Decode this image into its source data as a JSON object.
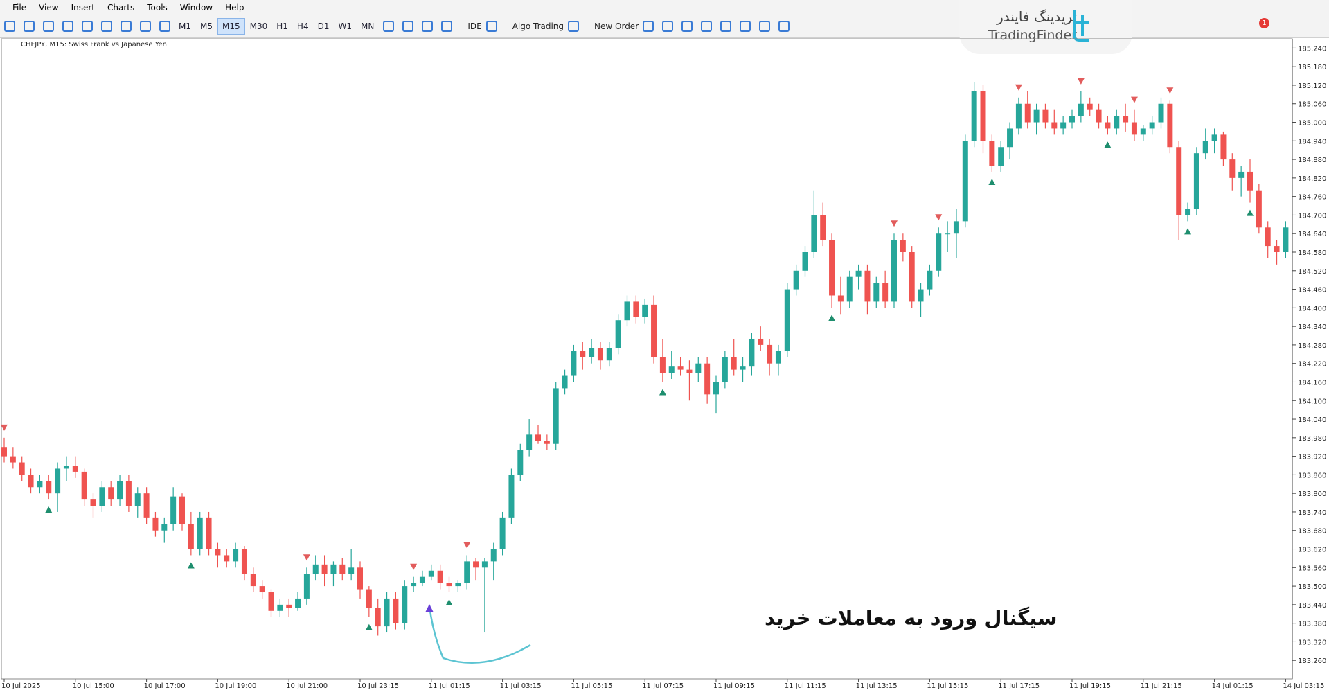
{
  "menu": [
    "File",
    "View",
    "Insert",
    "Charts",
    "Tools",
    "Window",
    "Help"
  ],
  "toolbar": {
    "timeframes": [
      "M1",
      "M5",
      "M15",
      "M30",
      "H1",
      "H4",
      "D1",
      "W1",
      "MN"
    ],
    "buttons": [
      "IDE",
      "Algo Trading",
      "New Order"
    ],
    "notification_count": 1
  },
  "logo": {
    "persian": "تریدینگ فایندر",
    "latin": "TradingFinder"
  },
  "chart_data": {
    "type": "candlestick",
    "title": "CHFJPY, M15:  Swiss Frank vs Japanese Yen",
    "annotation": "سیگنال ورود به معاملات خرید",
    "up_color": "#26a69a",
    "down_color": "#ef5350",
    "ylim": [
      183.2,
      185.27
    ],
    "yticks": [
      {
        "value": 185.24,
        "label": "185.240"
      },
      {
        "value": 185.18,
        "label": "185.180"
      },
      {
        "value": 185.12,
        "label": "185.120"
      },
      {
        "value": 185.06,
        "label": "185.060"
      },
      {
        "value": 185,
        "label": "185.000"
      },
      {
        "value": 184.94,
        "label": "184.940"
      },
      {
        "value": 184.88,
        "label": "184.880"
      },
      {
        "value": 184.82,
        "label": "184.820"
      },
      {
        "value": 184.76,
        "label": "184.760"
      },
      {
        "value": 184.7,
        "label": "184.700"
      },
      {
        "value": 184.64,
        "label": "184.640"
      },
      {
        "value": 184.58,
        "label": "184.580"
      },
      {
        "value": 184.52,
        "label": "184.520"
      },
      {
        "value": 184.46,
        "label": "184.460"
      },
      {
        "value": 184.4,
        "label": "184.400"
      },
      {
        "value": 184.34,
        "label": "184.340"
      },
      {
        "value": 184.28,
        "label": "184.280"
      },
      {
        "value": 184.22,
        "label": "184.220"
      },
      {
        "value": 184.16,
        "label": "184.160"
      },
      {
        "value": 184.1,
        "label": "184.100"
      },
      {
        "value": 184.04,
        "label": "184.040"
      },
      {
        "value": 183.98,
        "label": "183.980"
      },
      {
        "value": 183.92,
        "label": "183.920"
      },
      {
        "value": 183.86,
        "label": "183.860"
      },
      {
        "value": 183.8,
        "label": "183.800"
      },
      {
        "value": 183.74,
        "label": "183.740"
      },
      {
        "value": 183.68,
        "label": "183.680"
      },
      {
        "value": 183.62,
        "label": "183.620"
      },
      {
        "value": 183.56,
        "label": "183.560"
      },
      {
        "value": 183.5,
        "label": "183.500"
      },
      {
        "value": 183.44,
        "label": "183.440"
      },
      {
        "value": 183.38,
        "label": "183.380"
      },
      {
        "value": 183.32,
        "label": "183.320"
      },
      {
        "value": 183.26,
        "label": "183.260"
      }
    ],
    "xticks": [
      {
        "value": 0,
        "label": "10 Jul 2025"
      },
      {
        "value": 8,
        "label": "10 Jul 15:00"
      },
      {
        "value": 16,
        "label": "10 Jul 17:00"
      },
      {
        "value": 24,
        "label": "10 Jul 19:00"
      },
      {
        "value": 32,
        "label": "10 Jul 21:00"
      },
      {
        "value": 40,
        "label": "10 Jul 23:15"
      },
      {
        "value": 48,
        "label": "11 Jul 01:15"
      },
      {
        "value": 56,
        "label": "11 Jul 03:15"
      },
      {
        "value": 64,
        "label": "11 Jul 05:15"
      },
      {
        "value": 72,
        "label": "11 Jul 07:15"
      },
      {
        "value": 80,
        "label": "11 Jul 09:15"
      },
      {
        "value": 88,
        "label": "11 Jul 11:15"
      },
      {
        "value": 96,
        "label": "11 Jul 13:15"
      },
      {
        "value": 104,
        "label": "11 Jul 15:15"
      },
      {
        "value": 112,
        "label": "11 Jul 17:15"
      },
      {
        "value": 120,
        "label": "11 Jul 19:15"
      },
      {
        "value": 128,
        "label": "11 Jul 21:15"
      },
      {
        "value": 136,
        "label": "14 Jul 01:15"
      },
      {
        "value": 144,
        "label": "14 Jul 03:15"
      }
    ],
    "buy_signals": [
      5,
      21,
      41,
      50,
      74,
      93,
      111,
      124,
      133,
      140
    ],
    "sell_signals": [
      0,
      34,
      46,
      52,
      100,
      105,
      114,
      121,
      127,
      131
    ],
    "candles": [
      [
        183.95,
        183.98,
        183.9,
        183.92
      ],
      [
        183.92,
        183.95,
        183.88,
        183.9
      ],
      [
        183.9,
        183.92,
        183.84,
        183.86
      ],
      [
        183.86,
        183.88,
        183.8,
        183.82
      ],
      [
        183.82,
        183.86,
        183.8,
        183.84
      ],
      [
        183.84,
        183.86,
        183.78,
        183.8
      ],
      [
        183.8,
        183.9,
        183.74,
        183.88
      ],
      [
        183.88,
        183.92,
        183.84,
        183.89
      ],
      [
        183.89,
        183.92,
        183.85,
        183.87
      ],
      [
        183.87,
        183.88,
        183.76,
        183.78
      ],
      [
        183.78,
        183.8,
        183.72,
        183.76
      ],
      [
        183.76,
        183.84,
        183.74,
        183.82
      ],
      [
        183.82,
        183.84,
        183.76,
        183.78
      ],
      [
        183.78,
        183.86,
        183.76,
        183.84
      ],
      [
        183.84,
        183.86,
        183.74,
        183.76
      ],
      [
        183.76,
        183.82,
        183.72,
        183.8
      ],
      [
        183.8,
        183.82,
        183.7,
        183.72
      ],
      [
        183.72,
        183.74,
        183.66,
        183.68
      ],
      [
        183.68,
        183.72,
        183.64,
        183.7
      ],
      [
        183.7,
        183.82,
        183.68,
        183.79
      ],
      [
        183.79,
        183.8,
        183.68,
        183.7
      ],
      [
        183.7,
        183.74,
        183.6,
        183.62
      ],
      [
        183.62,
        183.74,
        183.6,
        183.72
      ],
      [
        183.72,
        183.74,
        183.6,
        183.62
      ],
      [
        183.62,
        183.64,
        183.56,
        183.6
      ],
      [
        183.6,
        183.62,
        183.56,
        183.58
      ],
      [
        183.58,
        183.64,
        183.56,
        183.62
      ],
      [
        183.62,
        183.63,
        183.52,
        183.54
      ],
      [
        183.54,
        183.56,
        183.48,
        183.5
      ],
      [
        183.5,
        183.52,
        183.46,
        183.48
      ],
      [
        183.48,
        183.49,
        183.4,
        183.42
      ],
      [
        183.42,
        183.46,
        183.4,
        183.44
      ],
      [
        183.44,
        183.46,
        183.4,
        183.43
      ],
      [
        183.43,
        183.48,
        183.42,
        183.46
      ],
      [
        183.46,
        183.56,
        183.44,
        183.54
      ],
      [
        183.54,
        183.6,
        183.52,
        183.57
      ],
      [
        183.57,
        183.6,
        183.5,
        183.54
      ],
      [
        183.54,
        183.58,
        183.5,
        183.57
      ],
      [
        183.57,
        183.59,
        183.52,
        183.54
      ],
      [
        183.54,
        183.62,
        183.52,
        183.56
      ],
      [
        183.56,
        183.58,
        183.46,
        183.49
      ],
      [
        183.49,
        183.5,
        183.4,
        183.43
      ],
      [
        183.43,
        183.46,
        183.34,
        183.37
      ],
      [
        183.37,
        183.48,
        183.35,
        183.46
      ],
      [
        183.46,
        183.48,
        183.36,
        183.38
      ],
      [
        183.38,
        183.52,
        183.36,
        183.5
      ],
      [
        183.5,
        183.53,
        183.48,
        183.51
      ],
      [
        183.51,
        183.55,
        183.5,
        183.53
      ],
      [
        183.53,
        183.57,
        183.52,
        183.55
      ],
      [
        183.55,
        183.57,
        183.49,
        183.51
      ],
      [
        183.51,
        183.53,
        183.48,
        183.5
      ],
      [
        183.5,
        183.52,
        183.48,
        183.51
      ],
      [
        183.51,
        183.6,
        183.49,
        183.58
      ],
      [
        183.58,
        183.59,
        183.52,
        183.56
      ],
      [
        183.56,
        183.59,
        183.35,
        183.58
      ],
      [
        183.58,
        183.64,
        183.52,
        183.62
      ],
      [
        183.62,
        183.74,
        183.6,
        183.72
      ],
      [
        183.72,
        183.88,
        183.7,
        183.86
      ],
      [
        183.86,
        183.96,
        183.84,
        183.94
      ],
      [
        183.94,
        184.04,
        183.92,
        183.99
      ],
      [
        183.99,
        184.02,
        183.96,
        183.97
      ],
      [
        183.97,
        183.99,
        183.94,
        183.96
      ],
      [
        183.96,
        184.16,
        183.94,
        184.14
      ],
      [
        184.14,
        184.2,
        184.12,
        184.18
      ],
      [
        184.18,
        184.28,
        184.16,
        184.26
      ],
      [
        184.26,
        184.29,
        184.2,
        184.24
      ],
      [
        184.24,
        184.3,
        184.22,
        184.27
      ],
      [
        184.27,
        184.29,
        184.2,
        184.23
      ],
      [
        184.23,
        184.29,
        184.21,
        184.27
      ],
      [
        184.27,
        184.38,
        184.25,
        184.36
      ],
      [
        184.36,
        184.44,
        184.34,
        184.42
      ],
      [
        184.42,
        184.44,
        184.35,
        184.37
      ],
      [
        184.37,
        184.43,
        184.35,
        184.41
      ],
      [
        184.41,
        184.44,
        184.22,
        184.24
      ],
      [
        184.24,
        184.3,
        184.16,
        184.19
      ],
      [
        184.19,
        184.26,
        184.17,
        184.21
      ],
      [
        184.21,
        184.24,
        184.18,
        184.2
      ],
      [
        184.2,
        184.23,
        184.1,
        184.19
      ],
      [
        184.19,
        184.24,
        184.16,
        184.22
      ],
      [
        184.22,
        184.24,
        184.09,
        184.12
      ],
      [
        184.12,
        184.18,
        184.06,
        184.16
      ],
      [
        184.16,
        184.26,
        184.14,
        184.24
      ],
      [
        184.24,
        184.3,
        184.18,
        184.2
      ],
      [
        184.2,
        184.24,
        184.16,
        184.21
      ],
      [
        184.21,
        184.32,
        184.18,
        184.3
      ],
      [
        184.3,
        184.34,
        184.26,
        184.28
      ],
      [
        184.28,
        184.3,
        184.18,
        184.22
      ],
      [
        184.22,
        184.28,
        184.18,
        184.26
      ],
      [
        184.26,
        184.48,
        184.24,
        184.46
      ],
      [
        184.46,
        184.54,
        184.44,
        184.52
      ],
      [
        184.52,
        184.6,
        184.5,
        184.58
      ],
      [
        184.58,
        184.78,
        184.56,
        184.7
      ],
      [
        184.7,
        184.74,
        184.6,
        184.62
      ],
      [
        184.62,
        184.64,
        184.4,
        184.44
      ],
      [
        184.44,
        184.5,
        184.38,
        184.42
      ],
      [
        184.42,
        184.52,
        184.4,
        184.5
      ],
      [
        184.5,
        184.54,
        184.46,
        184.52
      ],
      [
        184.52,
        184.54,
        184.38,
        184.42
      ],
      [
        184.42,
        184.5,
        184.4,
        184.48
      ],
      [
        184.48,
        184.52,
        184.4,
        184.42
      ],
      [
        184.42,
        184.64,
        184.4,
        184.62
      ],
      [
        184.62,
        184.64,
        184.55,
        184.58
      ],
      [
        184.58,
        184.6,
        184.4,
        184.42
      ],
      [
        184.42,
        184.48,
        184.37,
        184.46
      ],
      [
        184.46,
        184.54,
        184.44,
        184.52
      ],
      [
        184.52,
        184.66,
        184.5,
        184.64
      ],
      [
        184.64,
        184.68,
        184.58,
        184.64
      ],
      [
        184.64,
        184.72,
        184.56,
        184.68
      ],
      [
        184.68,
        184.96,
        184.66,
        184.94
      ],
      [
        184.94,
        185.13,
        184.92,
        185.1
      ],
      [
        185.1,
        185.12,
        184.9,
        184.94
      ],
      [
        184.94,
        184.96,
        184.84,
        184.86
      ],
      [
        184.86,
        184.94,
        184.84,
        184.92
      ],
      [
        184.92,
        185,
        184.88,
        184.98
      ],
      [
        184.98,
        185.08,
        184.96,
        185.06
      ],
      [
        185.06,
        185.1,
        184.98,
        185
      ],
      [
        185,
        185.06,
        184.96,
        185.04
      ],
      [
        185.04,
        185.06,
        184.98,
        185
      ],
      [
        185,
        185.04,
        184.96,
        184.98
      ],
      [
        184.98,
        185.02,
        184.96,
        185
      ],
      [
        185,
        185.04,
        184.98,
        185.02
      ],
      [
        185.02,
        185.1,
        185,
        185.06
      ],
      [
        185.06,
        185.08,
        185.02,
        185.04
      ],
      [
        185.04,
        185.06,
        184.98,
        185
      ],
      [
        185,
        185.02,
        184.96,
        184.98
      ],
      [
        184.98,
        185.04,
        184.96,
        185.02
      ],
      [
        185.02,
        185.06,
        184.97,
        185
      ],
      [
        185,
        185.04,
        184.94,
        184.96
      ],
      [
        184.96,
        184.99,
        184.94,
        184.98
      ],
      [
        184.98,
        185.02,
        184.96,
        185
      ],
      [
        185,
        185.08,
        184.98,
        185.06
      ],
      [
        185.06,
        185.07,
        184.9,
        184.92
      ],
      [
        184.92,
        184.94,
        184.62,
        184.7
      ],
      [
        184.7,
        184.74,
        184.68,
        184.72
      ],
      [
        184.72,
        184.92,
        184.7,
        184.9
      ],
      [
        184.9,
        184.98,
        184.88,
        184.94
      ],
      [
        184.94,
        184.98,
        184.9,
        184.96
      ],
      [
        184.96,
        184.97,
        184.86,
        184.88
      ],
      [
        184.88,
        184.9,
        184.78,
        184.82
      ],
      [
        184.82,
        184.86,
        184.76,
        184.84
      ],
      [
        184.84,
        184.88,
        184.74,
        184.78
      ],
      [
        184.78,
        184.8,
        184.64,
        184.66
      ],
      [
        184.66,
        184.68,
        184.56,
        184.6
      ],
      [
        184.6,
        184.62,
        184.54,
        184.58
      ],
      [
        184.58,
        184.68,
        184.56,
        184.66
      ]
    ]
  }
}
